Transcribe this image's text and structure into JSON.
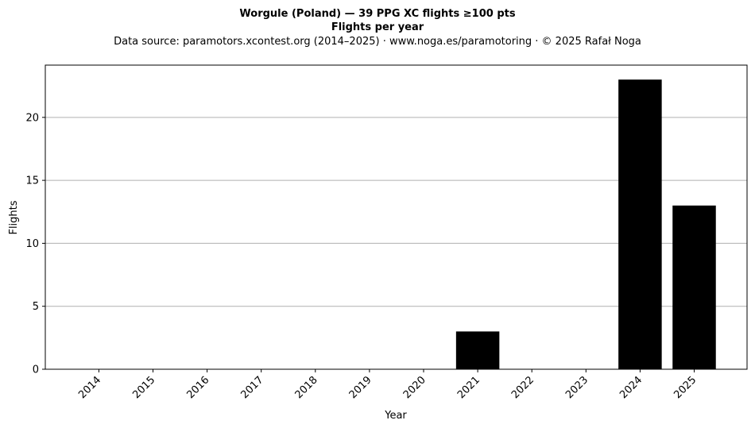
{
  "chart_data": {
    "type": "bar",
    "title_line1": "Worgule (Poland)  —  39 PPG XC flights ≥100 pts",
    "title_line2": "Flights per year",
    "subtitle": "Data source: paramotors.xcontest.org (2014–2025)  ·  www.noga.es/paramotoring  ·  © 2025 Rafał Noga",
    "xlabel": "Year",
    "ylabel": "Flights",
    "categories": [
      "2014",
      "2015",
      "2016",
      "2017",
      "2018",
      "2019",
      "2020",
      "2021",
      "2022",
      "2023",
      "2024",
      "2025"
    ],
    "values": [
      0,
      0,
      0,
      0,
      0,
      0,
      0,
      3,
      0,
      0,
      23,
      13
    ],
    "yticks": [
      0,
      5,
      10,
      15,
      20
    ],
    "ylim": [
      0,
      24.15
    ],
    "grid": "horizontal",
    "bar_color": "#000000",
    "grid_color": "#b0b0b0"
  }
}
